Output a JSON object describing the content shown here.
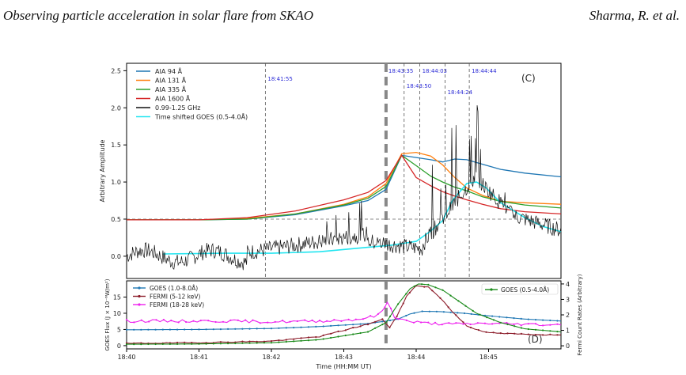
{
  "header": {
    "title": "Observing particle acceleration in solar flare from SKAO",
    "authors": "Sharma, R. et al."
  },
  "chart_data": [
    {
      "type": "line",
      "panel": "(C)",
      "ylabel": "Arbitrary Amplitude",
      "ylim": [
        -0.3,
        2.6
      ],
      "yticks": [
        "0.0",
        "0.5",
        "1.0",
        "1.5",
        "2.0",
        "2.5"
      ],
      "yticks_values": [
        0,
        0.5,
        1,
        1.5,
        2,
        2.5
      ],
      "xlim": [
        0,
        360
      ],
      "xunit": "seconds after 18:40:00",
      "hline": 0.5,
      "vlines": [
        {
          "label": "18:41:55",
          "x": 115
        },
        {
          "label": "18:43:35",
          "x": 215,
          "dashed_thick": true
        },
        {
          "label": "18:43:50",
          "x": 230
        },
        {
          "label": "18:44:03",
          "x": 243
        },
        {
          "label": "18:44:24",
          "x": 264
        },
        {
          "label": "18:44:44",
          "x": 284
        }
      ],
      "legend": [
        {
          "name": "AIA 94 Å",
          "color": "#1f77b4"
        },
        {
          "name": "AIA 131 Å",
          "color": "#ff7f0e"
        },
        {
          "name": "AIA 335 Å",
          "color": "#2ca02c"
        },
        {
          "name": "AIA 1600 Å",
          "color": "#d62728"
        },
        {
          "name": "0.99-1.25 GHz",
          "color": "#111111"
        },
        {
          "name": "Time shifted GOES (0.5-4.0Å)",
          "color": "#22e5f0"
        }
      ],
      "series": [
        {
          "name": "AIA 94 Å",
          "color": "#1f77b4",
          "x": [
            0,
            60,
            100,
            140,
            180,
            200,
            215,
            228,
            240,
            252,
            262,
            272,
            282,
            295,
            310,
            330,
            360
          ],
          "y": [
            0.49,
            0.49,
            0.5,
            0.56,
            0.68,
            0.75,
            0.9,
            1.36,
            1.33,
            1.3,
            1.27,
            1.31,
            1.3,
            1.24,
            1.17,
            1.12,
            1.07
          ]
        },
        {
          "name": "AIA 131 Å",
          "color": "#ff7f0e",
          "x": [
            0,
            60,
            100,
            140,
            180,
            200,
            215,
            228,
            240,
            252,
            262,
            272,
            282,
            295,
            310,
            330,
            360
          ],
          "y": [
            0.49,
            0.49,
            0.51,
            0.57,
            0.7,
            0.8,
            0.98,
            1.38,
            1.4,
            1.35,
            1.23,
            1.06,
            0.92,
            0.82,
            0.74,
            0.72,
            0.7
          ]
        },
        {
          "name": "AIA 335 Å",
          "color": "#2ca02c",
          "x": [
            0,
            60,
            100,
            140,
            180,
            200,
            215,
            228,
            240,
            252,
            262,
            272,
            282,
            295,
            310,
            330,
            360
          ],
          "y": [
            0.49,
            0.49,
            0.5,
            0.57,
            0.69,
            0.78,
            0.94,
            1.36,
            1.22,
            1.08,
            1.0,
            0.93,
            0.88,
            0.8,
            0.74,
            0.69,
            0.65
          ]
        },
        {
          "name": "AIA 1600 Å",
          "color": "#d62728",
          "x": [
            0,
            60,
            100,
            140,
            180,
            200,
            215,
            228,
            240,
            252,
            262,
            272,
            282,
            295,
            310,
            330,
            360
          ],
          "y": [
            0.49,
            0.49,
            0.52,
            0.61,
            0.76,
            0.86,
            1.02,
            1.36,
            1.06,
            0.95,
            0.87,
            0.81,
            0.76,
            0.7,
            0.64,
            0.6,
            0.57
          ]
        },
        {
          "name": "0.99-1.25 GHz",
          "color": "#111111",
          "generated": true
        },
        {
          "name": "Time shifted GOES (0.5-4.0Å)",
          "color": "#22e5f0",
          "x": [
            30,
            80,
            120,
            160,
            200,
            220,
            240,
            252,
            262,
            270,
            282,
            290,
            298,
            310,
            330,
            345,
            360
          ],
          "y": [
            0.03,
            0.04,
            0.04,
            0.06,
            0.12,
            0.15,
            0.2,
            0.34,
            0.48,
            0.75,
            0.98,
            1.0,
            0.92,
            0.72,
            0.52,
            0.4,
            0.33
          ]
        }
      ]
    },
    {
      "type": "line",
      "panel": "(D)",
      "ylabel": "GOES Flux (J × 10⁻⁶W/m²)",
      "y2label": "Fermi Count Rates (Arbitrary)",
      "xlabel": "Time (HH:MM UT)",
      "xticks": [
        "18:40",
        "18:41",
        "18:42",
        "18:43",
        "18:44",
        "18:45"
      ],
      "xticks_values": [
        0,
        60,
        120,
        180,
        240,
        300
      ],
      "yticks": [
        "0",
        "5",
        "10",
        "15"
      ],
      "yticks_values": [
        0,
        5,
        10,
        15
      ],
      "ylim": [
        -1,
        20
      ],
      "y2ticks": [
        "0",
        "1",
        "2",
        "3",
        "4"
      ],
      "y2ticks_values": [
        0,
        1,
        2,
        3,
        4
      ],
      "y2lim": [
        -0.2,
        4.2
      ],
      "legend_left": [
        {
          "name": "GOES (1.0-8.0Å)",
          "color": "#1f77b4"
        },
        {
          "name": "FERMI (5-12 keV)",
          "color": "#8c1c2a"
        },
        {
          "name": "FERMI (18-28 keV)",
          "color": "#ee22ee"
        }
      ],
      "legend_right": [
        {
          "name": "GOES (0.5-4.0Å)",
          "color": "#1a8a1a"
        }
      ],
      "series": [
        {
          "name": "GOES (1.0-8.0Å)",
          "color": "#1f77b4",
          "axis": "left",
          "x": [
            0,
            60,
            120,
            160,
            200,
            215,
            225,
            235,
            245,
            260,
            280,
            300,
            330,
            360
          ],
          "y": [
            4.9,
            5.0,
            5.3,
            5.9,
            6.8,
            7.6,
            8.2,
            9.8,
            10.6,
            10.5,
            10.0,
            9.2,
            8.2,
            7.6
          ]
        },
        {
          "name": "FERMI (5-12 keV)",
          "color": "#8c1c2a",
          "axis": "right",
          "x": [
            0,
            60,
            120,
            160,
            200,
            212,
            218,
            224,
            232,
            240,
            250,
            260,
            270,
            282,
            295,
            310,
            330,
            360
          ],
          "y": [
            0.15,
            0.2,
            0.3,
            0.6,
            1.4,
            1.7,
            1.2,
            1.9,
            3.2,
            3.9,
            3.8,
            3.1,
            2.2,
            1.3,
            0.9,
            0.8,
            0.75,
            0.7
          ]
        },
        {
          "name": "FERMI (18-28 keV)",
          "color": "#ee22ee",
          "axis": "right",
          "x": [
            0,
            40,
            80,
            120,
            160,
            190,
            205,
            212,
            216,
            222,
            232,
            250,
            270,
            300,
            330,
            360
          ],
          "y": [
            1.6,
            1.6,
            1.6,
            1.55,
            1.6,
            1.7,
            1.9,
            2.2,
            2.85,
            1.9,
            1.6,
            1.45,
            1.4,
            1.45,
            1.4,
            1.35
          ]
        },
        {
          "name": "GOES (0.5-4.0Å)",
          "color": "#1a8a1a",
          "axis": "right",
          "x": [
            0,
            60,
            120,
            160,
            200,
            215,
            225,
            235,
            242,
            250,
            262,
            275,
            290,
            310,
            330,
            360
          ],
          "y": [
            0.1,
            0.12,
            0.2,
            0.4,
            0.9,
            1.5,
            2.7,
            3.7,
            4.0,
            3.95,
            3.6,
            2.9,
            2.1,
            1.5,
            1.1,
            0.9
          ]
        }
      ]
    }
  ]
}
